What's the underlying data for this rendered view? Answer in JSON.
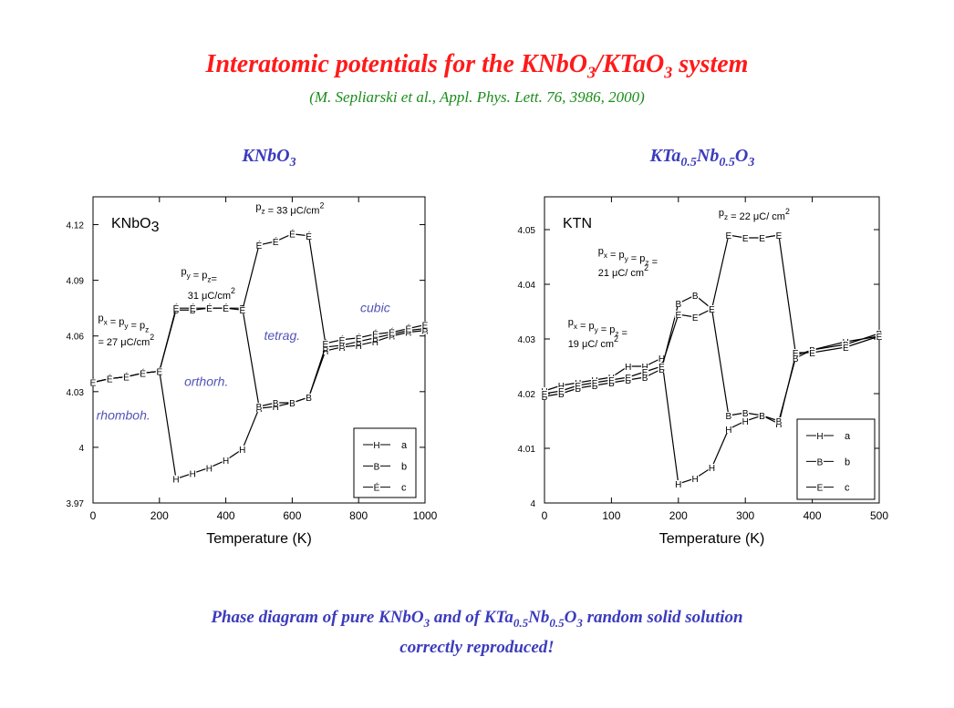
{
  "title": {
    "main": "Interatomic potentials for the KNbO",
    "sub3": "3",
    "sep": "/KTaO",
    "sub3b": "3",
    "end": " system"
  },
  "citation": "(M. Sepliarski et al., Appl. Phys. Lett. 76, 3986, 2000)",
  "panel_titles": {
    "left": {
      "a": "KNbO",
      "sub": "3"
    },
    "right": {
      "a": "KTa",
      "s1": "0.5",
      "b": "Nb",
      "s2": "0.5",
      "c": "O",
      "s3": "3"
    }
  },
  "caption": {
    "l1a": "Phase diagram of pure KNbO",
    "l1s1": "3",
    "l1b": " and of KTa",
    "l1s2": "0.5",
    "l1c": "Nb",
    "l1s3": "0.5",
    "l1d": "O",
    "l1s4": "3",
    "l1e": " random solid solution",
    "line2": "correctly reproduced!"
  },
  "chart_data": [
    {
      "type": "line",
      "inset_label": "KNbO",
      "inset_label_sub": "3",
      "xlabel": "Temperature (K)",
      "ylabel": "",
      "xlim": [
        0,
        1000
      ],
      "ylim": [
        3.97,
        4.135
      ],
      "xticks": [
        0,
        200,
        400,
        600,
        800,
        1000
      ],
      "yticks": [
        3.97,
        4,
        4.03,
        4.06,
        4.09,
        4.12
      ],
      "ytick_labels": [
        "3.97",
        "4",
        "4.03",
        "4.06",
        "4.09",
        "4.12"
      ],
      "grid": false,
      "legend_position": "bottom-right",
      "series": [
        {
          "name": "a",
          "marker": "H",
          "x": [
            0,
            50,
            100,
            150,
            200,
            250,
            300,
            350,
            400,
            450,
            500,
            550,
            600,
            650,
            700,
            750,
            800,
            850,
            900,
            950,
            1000
          ],
          "y": [
            4.035,
            4.037,
            4.038,
            4.04,
            4.041,
            3.983,
            3.986,
            3.989,
            3.993,
            3.999,
            4.021,
            4.022,
            4.024,
            4.027,
            4.052,
            4.054,
            4.055,
            4.057,
            4.06,
            4.062,
            4.063
          ]
        },
        {
          "name": "b",
          "marker": "B",
          "x": [
            0,
            50,
            100,
            150,
            200,
            250,
            300,
            350,
            400,
            450,
            500,
            550,
            600,
            650,
            700,
            750,
            800,
            850,
            900,
            950,
            1000
          ],
          "y": [
            4.035,
            4.037,
            4.038,
            4.04,
            4.041,
            4.074,
            4.074,
            4.075,
            4.075,
            4.075,
            4.022,
            4.024,
            4.024,
            4.027,
            4.054,
            4.055,
            4.057,
            4.059,
            4.061,
            4.063,
            4.064
          ]
        },
        {
          "name": "c",
          "marker": "É",
          "x": [
            0,
            50,
            100,
            150,
            200,
            250,
            300,
            350,
            400,
            450,
            500,
            550,
            600,
            650,
            700,
            750,
            800,
            850,
            900,
            950,
            1000
          ],
          "y": [
            4.035,
            4.037,
            4.038,
            4.04,
            4.041,
            4.075,
            4.075,
            4.075,
            4.075,
            4.074,
            4.109,
            4.111,
            4.115,
            4.114,
            4.056,
            4.058,
            4.059,
            4.061,
            4.062,
            4.064,
            4.066
          ]
        }
      ],
      "annotations": [
        {
          "text": "p",
          "sub": "z",
          "rest": " = 33 μC/cm",
          "sup": "2",
          "x": 490,
          "y": 4.128
        },
        {
          "text": "p",
          "sub": "y",
          "rest": " = p",
          "sub2": "z",
          "rest2": "=",
          "x": 265,
          "y": 4.093
        },
        {
          "text": "31 μC/cm",
          "sup": "2",
          "x": 285,
          "y": 4.08
        },
        {
          "text": "p",
          "sub": "x",
          "rest": " = p",
          "sub2": "y",
          "rest2": " = p",
          "sub3": "z",
          "x": 15,
          "y": 4.068
        },
        {
          "text": "= 27 μC/cm",
          "sup": "2",
          "x": 15,
          "y": 4.055
        }
      ],
      "phase_labels": [
        {
          "text": "cubic",
          "x": 805,
          "y": 4.073
        },
        {
          "text": "tetrag.",
          "x": 515,
          "y": 4.058
        },
        {
          "text": "orthorh.",
          "x": 275,
          "y": 4.033
        },
        {
          "text": "rhomboh.",
          "x": 10,
          "y": 4.015
        }
      ]
    },
    {
      "type": "line",
      "inset_label": "KTN",
      "xlabel": "Temperature (K)",
      "ylabel": "",
      "xlim": [
        0,
        500
      ],
      "ylim": [
        4,
        4.056
      ],
      "xticks": [
        0,
        100,
        200,
        300,
        400,
        500
      ],
      "yticks": [
        4,
        4.01,
        4.02,
        4.03,
        4.04,
        4.05
      ],
      "ytick_labels": [
        "4",
        "4.01",
        "4.02",
        "4.03",
        "4.04",
        "4.05"
      ],
      "grid": false,
      "legend_position": "bottom-right",
      "series": [
        {
          "name": "a",
          "marker": "H",
          "x": [
            0,
            25,
            50,
            75,
            100,
            125,
            150,
            175,
            200,
            225,
            250,
            275,
            300,
            325,
            350,
            375,
            400,
            450,
            500
          ],
          "y": [
            4.0205,
            4.0215,
            4.022,
            4.0225,
            4.023,
            4.025,
            4.025,
            4.0265,
            4.0035,
            4.0045,
            4.0065,
            4.0135,
            4.015,
            4.016,
            4.0145,
            4.027,
            4.028,
            4.0295,
            4.0305
          ]
        },
        {
          "name": "b",
          "marker": "B",
          "x": [
            0,
            25,
            50,
            75,
            100,
            125,
            150,
            175,
            200,
            225,
            250,
            275,
            300,
            325,
            350,
            375,
            400,
            450,
            500
          ],
          "y": [
            4.0195,
            4.02,
            4.021,
            4.0215,
            4.022,
            4.0225,
            4.023,
            4.0245,
            4.0365,
            4.038,
            4.0355,
            4.016,
            4.0165,
            4.016,
            4.015,
            4.0265,
            4.028,
            4.029,
            4.031
          ]
        },
        {
          "name": "c",
          "marker": "E",
          "x": [
            0,
            25,
            50,
            75,
            100,
            125,
            150,
            175,
            200,
            225,
            250,
            275,
            300,
            325,
            350,
            375,
            400,
            450,
            500
          ],
          "y": [
            4.02,
            4.0205,
            4.0215,
            4.022,
            4.0225,
            4.023,
            4.024,
            4.025,
            4.0345,
            4.034,
            4.0355,
            4.049,
            4.0485,
            4.0485,
            4.049,
            4.0275,
            4.0275,
            4.0285,
            4.0305
          ]
        }
      ],
      "annotations": [
        {
          "text": "p",
          "sub": "z",
          "rest": " = 22 μC/ cm",
          "sup": "2",
          "x": 260,
          "y": 4.0525
        },
        {
          "text": "p",
          "sub": "x",
          "rest": " = p",
          "sub2": "y",
          "rest2": " = p",
          "sub3": "z",
          "rest3": " =",
          "x": 80,
          "y": 4.0455
        },
        {
          "text": "21 μC/ cm",
          "sup": "2",
          "x": 80,
          "y": 4.0415
        },
        {
          "text": "p",
          "sub": "x",
          "rest": " = p",
          "sub2": "y",
          "rest2": " = p",
          "sub3": "z",
          "rest3": " =",
          "x": 35,
          "y": 4.0325
        },
        {
          "text": "19 μC/ cm",
          "sup": "2",
          "x": 35,
          "y": 4.0285
        }
      ],
      "phase_labels": []
    }
  ]
}
